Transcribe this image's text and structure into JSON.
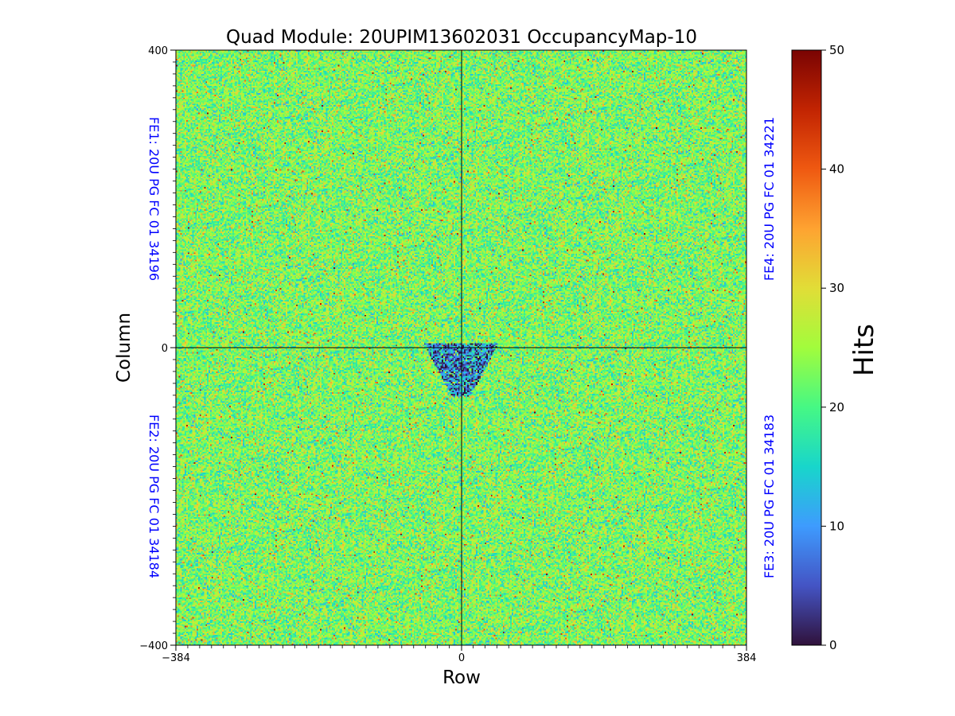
{
  "chart_data": {
    "type": "heatmap",
    "title": "Quad Module: 20UPIM13602031 OccupancyMap-10",
    "xlabel": "Row",
    "ylabel": "Column",
    "xlim": [
      -384,
      384
    ],
    "ylim": [
      -400,
      400
    ],
    "x_ticks": [
      "−384",
      "0",
      "384"
    ],
    "y_ticks": [
      "400",
      "0",
      "−400"
    ],
    "colorbar": {
      "label": "Hits",
      "range": [
        0,
        50
      ],
      "ticks": [
        "0",
        "10",
        "20",
        "30",
        "40",
        "50"
      ],
      "colormap": "turbo"
    },
    "typical_hits": 23,
    "low_occupancy_region": {
      "x_range": [
        -50,
        50
      ],
      "y_range": [
        -65,
        5
      ],
      "typical_hits": 8
    },
    "quadrant_labels": [
      {
        "id": "fe1",
        "text": "FE1: 20U PG FC 01 34196",
        "quadrant": "top-left"
      },
      {
        "id": "fe2",
        "text": "FE2: 20U PG FC 01 34184",
        "quadrant": "bottom-left"
      },
      {
        "id": "fe3",
        "text": "FE3: 20U PG FC 01 34183",
        "quadrant": "bottom-right"
      },
      {
        "id": "fe4",
        "text": "FE4: 20U PG FC 01 34221",
        "quadrant": "top-right"
      }
    ],
    "quadrant_label_color": "#0000ff"
  }
}
